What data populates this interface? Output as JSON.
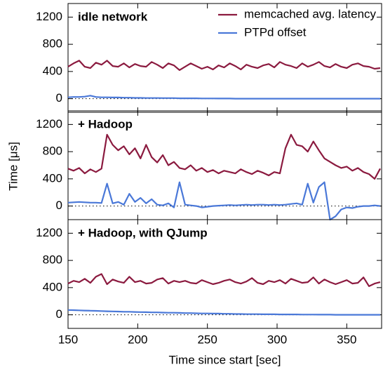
{
  "chart_data": [
    {
      "type": "line",
      "title": "idle network",
      "x": [
        150,
        154,
        158,
        162,
        166,
        170,
        174,
        178,
        182,
        186,
        190,
        194,
        198,
        202,
        206,
        210,
        214,
        218,
        222,
        226,
        230,
        234,
        238,
        242,
        246,
        250,
        254,
        258,
        262,
        266,
        270,
        274,
        278,
        282,
        286,
        290,
        294,
        298,
        302,
        306,
        310,
        314,
        318,
        322,
        326,
        330,
        334,
        338,
        342,
        346,
        350,
        354,
        358,
        362,
        366,
        370,
        374
      ],
      "series": [
        {
          "name": "memcached avg. latency",
          "color": "#8b1a3f",
          "values": [
            470,
            520,
            560,
            470,
            450,
            530,
            500,
            560,
            480,
            470,
            520,
            460,
            510,
            480,
            470,
            540,
            500,
            450,
            520,
            490,
            420,
            470,
            520,
            480,
            440,
            470,
            430,
            490,
            460,
            520,
            480,
            430,
            500,
            470,
            450,
            490,
            510,
            460,
            540,
            500,
            480,
            450,
            520,
            470,
            500,
            540,
            480,
            460,
            510,
            470,
            450,
            500,
            520,
            480,
            470,
            440,
            450
          ]
        },
        {
          "name": "PTPd offset",
          "color": "#4a78d8",
          "values": [
            20,
            25,
            25,
            30,
            45,
            25,
            20,
            20,
            18,
            18,
            15,
            15,
            12,
            12,
            10,
            10,
            10,
            8,
            8,
            8,
            5,
            5,
            5,
            5,
            3,
            3,
            3,
            2,
            2,
            2,
            0,
            0,
            0,
            0,
            0,
            0,
            0,
            0,
            0,
            0,
            0,
            0,
            0,
            0,
            0,
            0,
            0,
            0,
            0,
            0,
            0,
            0,
            0,
            0,
            0,
            0,
            0
          ]
        }
      ],
      "xlim": [
        150,
        375
      ],
      "xticks": [
        150,
        200,
        250,
        300,
        350
      ],
      "ylim": [
        -200,
        1400
      ],
      "yticks": [
        0,
        400,
        800,
        1200
      ],
      "reference_line": 0,
      "legend": "upper right"
    },
    {
      "type": "line",
      "title": "+ Hadoop",
      "ylabel": "Time [μs]",
      "x": [
        150,
        154,
        158,
        162,
        166,
        170,
        174,
        178,
        182,
        186,
        190,
        194,
        198,
        202,
        206,
        210,
        214,
        218,
        222,
        226,
        230,
        234,
        238,
        242,
        246,
        250,
        254,
        258,
        262,
        266,
        270,
        274,
        278,
        282,
        286,
        290,
        294,
        298,
        302,
        306,
        310,
        314,
        318,
        322,
        326,
        330,
        334,
        338,
        342,
        346,
        350,
        354,
        358,
        362,
        366,
        370,
        374
      ],
      "series": [
        {
          "color": "#8b1a3f",
          "values": [
            550,
            520,
            560,
            480,
            540,
            500,
            550,
            1050,
            900,
            820,
            880,
            760,
            850,
            700,
            900,
            720,
            640,
            750,
            600,
            650,
            560,
            540,
            600,
            520,
            560,
            500,
            530,
            480,
            520,
            500,
            480,
            540,
            500,
            470,
            520,
            490,
            450,
            500,
            480,
            850,
            1050,
            900,
            880,
            800,
            950,
            820,
            700,
            650,
            600,
            560,
            580,
            520,
            560,
            500,
            470,
            400,
            550
          ]
        },
        {
          "color": "#4a78d8",
          "values": [
            50,
            55,
            60,
            55,
            50,
            50,
            45,
            330,
            40,
            60,
            20,
            180,
            60,
            120,
            40,
            100,
            20,
            10,
            40,
            -20,
            350,
            20,
            10,
            0,
            -20,
            -10,
            0,
            5,
            10,
            15,
            10,
            15,
            20,
            15,
            20,
            20,
            15,
            20,
            15,
            20,
            30,
            40,
            20,
            330,
            50,
            280,
            350,
            -200,
            -150,
            -50,
            -20,
            -30,
            -10,
            0,
            0,
            10,
            0
          ]
        }
      ],
      "xlim": [
        150,
        375
      ],
      "xticks": [
        150,
        200,
        250,
        300,
        350
      ],
      "ylim": [
        -200,
        1400
      ],
      "yticks": [
        0,
        400,
        800,
        1200
      ],
      "reference_line": 0
    },
    {
      "type": "line",
      "title": "+ Hadoop, with QJump",
      "xlabel": "Time since start [sec]",
      "x": [
        150,
        154,
        158,
        162,
        166,
        170,
        174,
        178,
        182,
        186,
        190,
        194,
        198,
        202,
        206,
        210,
        214,
        218,
        222,
        226,
        230,
        234,
        238,
        242,
        246,
        250,
        254,
        258,
        262,
        266,
        270,
        274,
        278,
        282,
        286,
        290,
        294,
        298,
        302,
        306,
        310,
        314,
        318,
        322,
        326,
        330,
        334,
        338,
        342,
        346,
        350,
        354,
        358,
        362,
        366,
        370,
        374
      ],
      "series": [
        {
          "color": "#8b1a3f",
          "values": [
            460,
            500,
            480,
            530,
            470,
            560,
            600,
            450,
            520,
            490,
            470,
            560,
            480,
            500,
            460,
            470,
            520,
            540,
            460,
            500,
            480,
            500,
            470,
            460,
            510,
            480,
            450,
            470,
            500,
            520,
            480,
            460,
            490,
            540,
            470,
            450,
            500,
            480,
            510,
            460,
            530,
            500,
            470,
            480,
            550,
            460,
            520,
            480,
            450,
            480,
            510,
            460,
            470,
            550,
            420,
            460,
            480
          ]
        },
        {
          "color": "#4a78d8",
          "values": [
            70,
            68,
            65,
            62,
            60,
            58,
            55,
            52,
            50,
            48,
            45,
            45,
            42,
            40,
            38,
            35,
            35,
            32,
            30,
            30,
            28,
            25,
            25,
            22,
            20,
            20,
            18,
            18,
            15,
            15,
            12,
            12,
            10,
            10,
            10,
            8,
            8,
            8,
            5,
            5,
            5,
            5,
            3,
            3,
            3,
            2,
            2,
            2,
            0,
            0,
            0,
            0,
            0,
            0,
            0,
            0,
            0
          ]
        }
      ],
      "xlim": [
        150,
        375
      ],
      "xticks": [
        150,
        200,
        250,
        300,
        350
      ],
      "ylim": [
        -200,
        1400
      ],
      "yticks": [
        0,
        400,
        800,
        1200
      ],
      "reference_line": 0
    }
  ]
}
